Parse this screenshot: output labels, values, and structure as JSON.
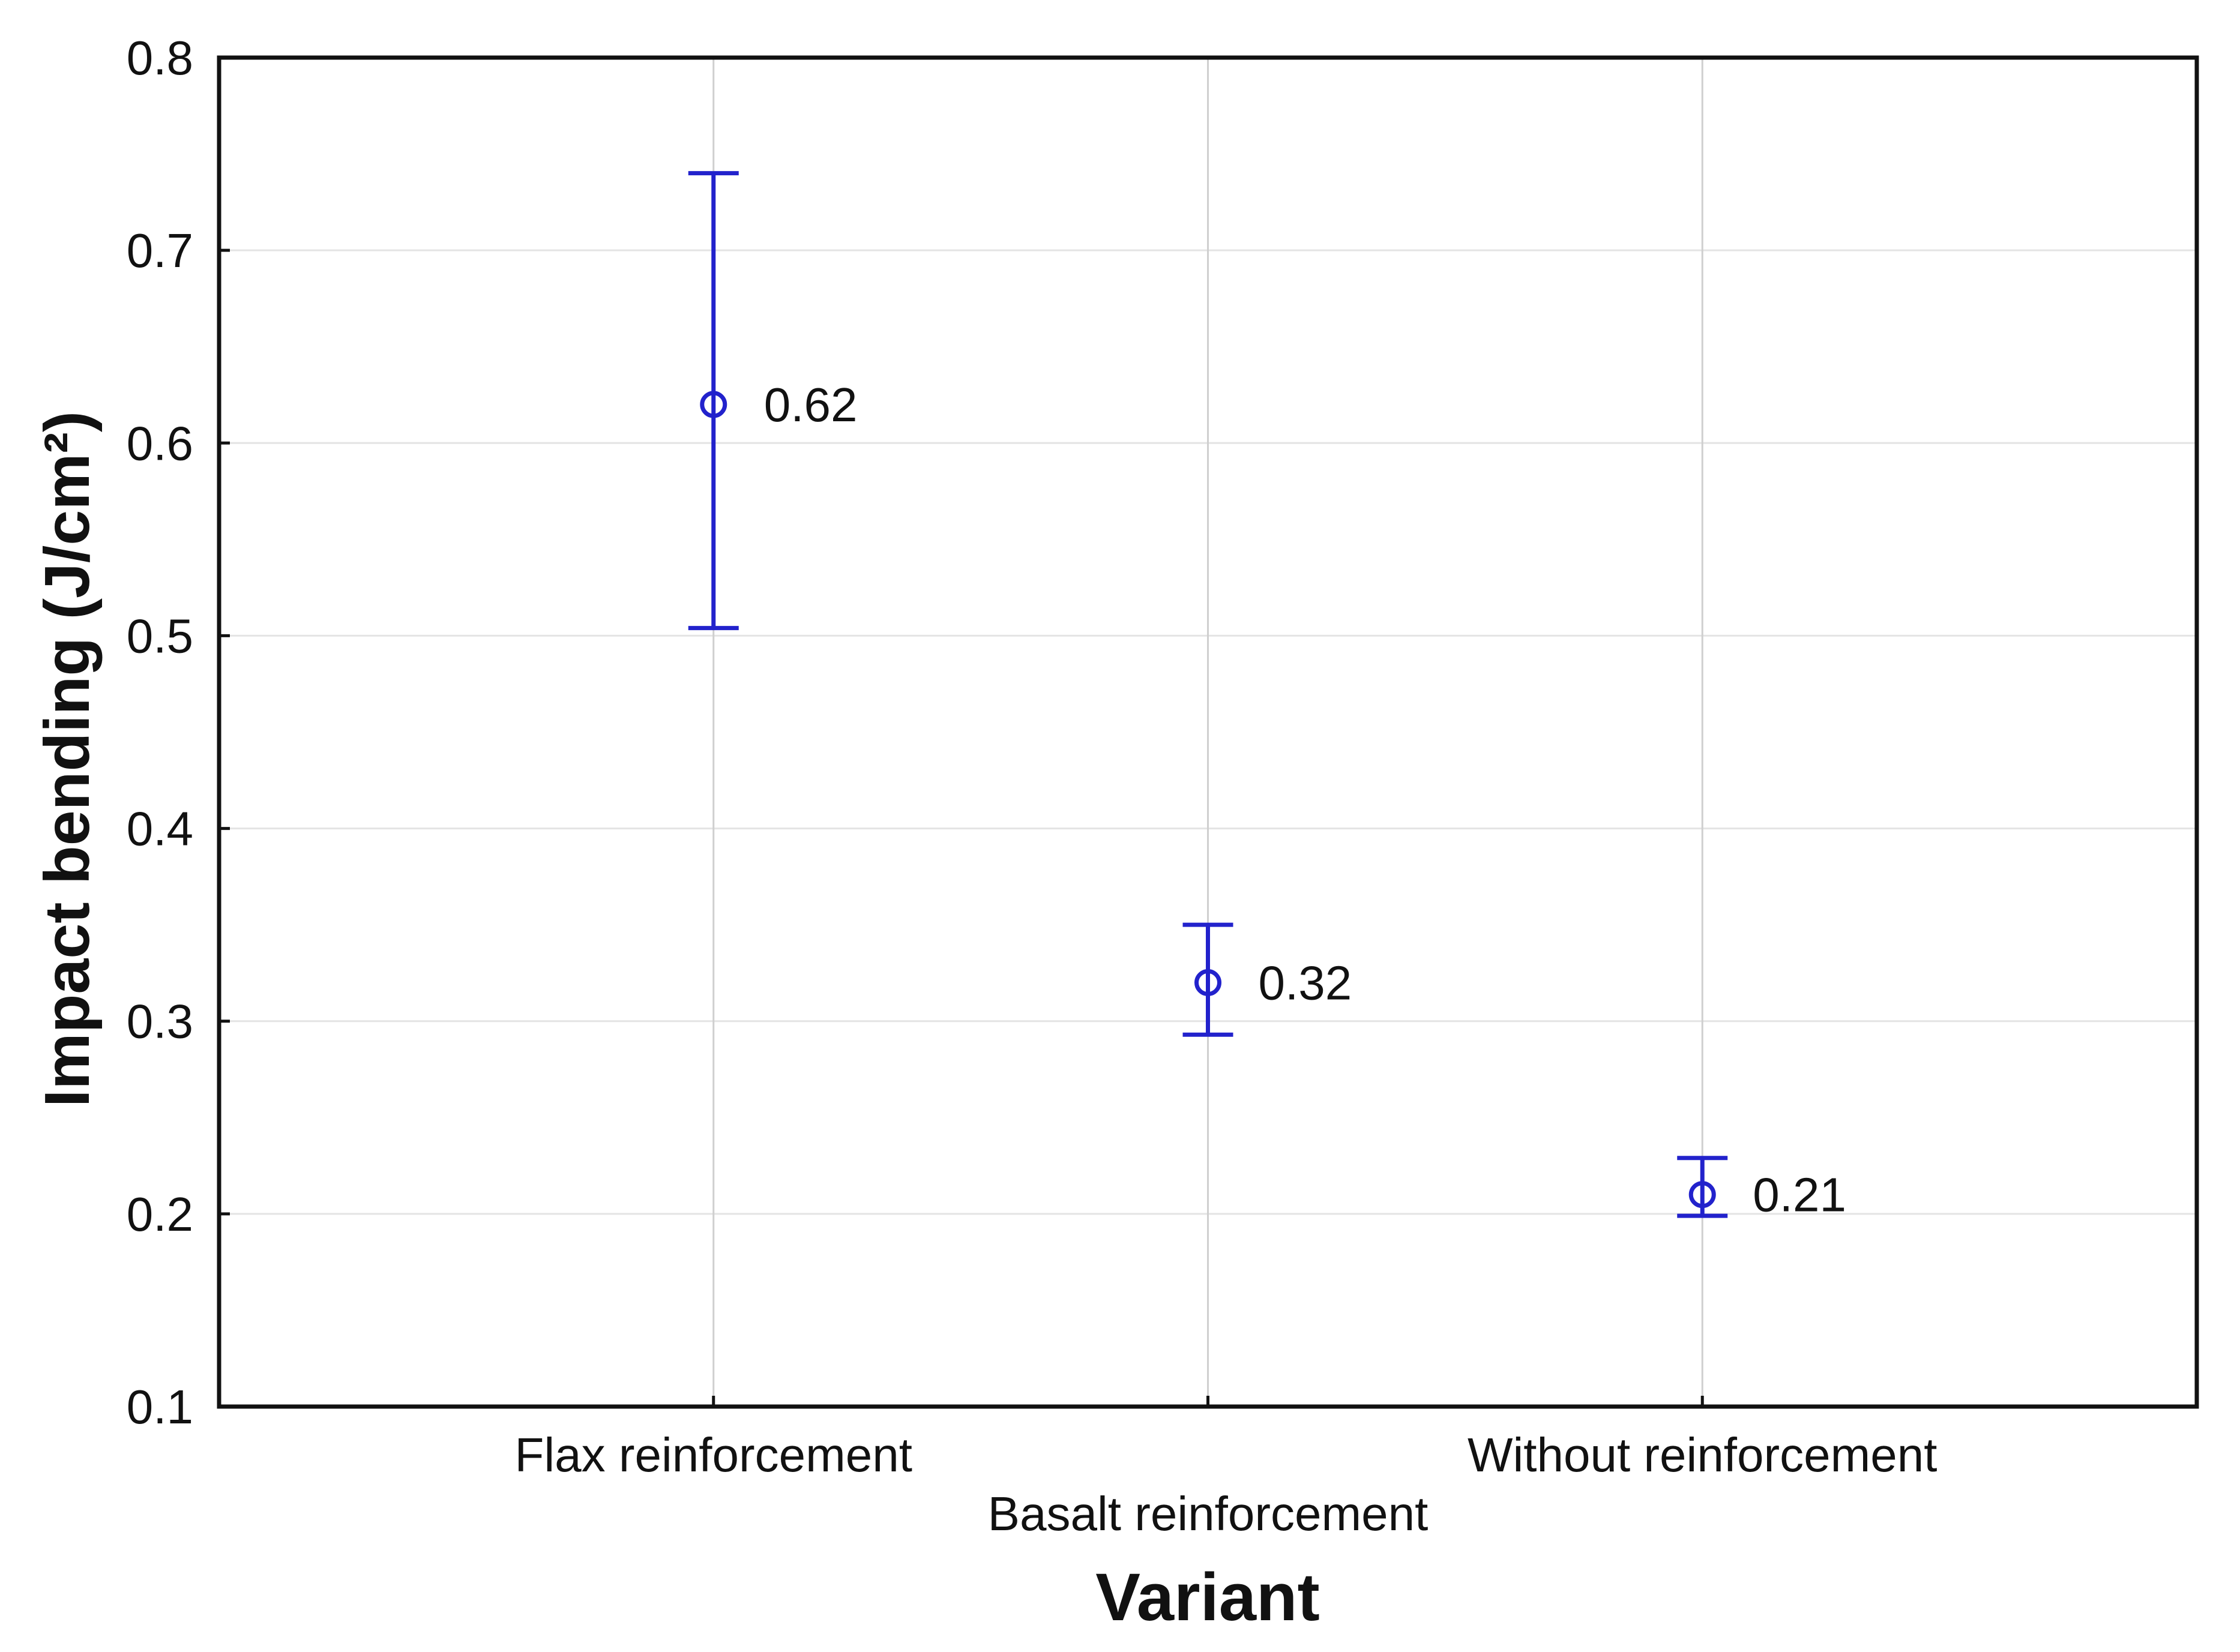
{
  "figure": {
    "background": "#ffffff"
  },
  "chart_data": {
    "type": "scatter",
    "subtype": "means-with-error-bars",
    "title": "",
    "categories": [
      "Flax reinforcement",
      "Basalt reinforcement",
      "Without reinforcement"
    ],
    "values": [
      0.62,
      0.32,
      0.21
    ],
    "point_labels": [
      "0.62",
      "0.32",
      "0.21"
    ],
    "error_bars": {
      "low": [
        0.504,
        0.293,
        0.199
      ],
      "high": [
        0.74,
        0.35,
        0.229
      ]
    },
    "xlabel": "Variant",
    "ylabel": "Impact bending (J/cm²)",
    "ylim": [
      0.1,
      0.8
    ],
    "ytick_step": 0.1,
    "ytick_labels": [
      "0.1",
      "0.2",
      "0.3",
      "0.4",
      "0.5",
      "0.6",
      "0.7",
      "0.8"
    ],
    "grid": "horizontal lines at each y tick, vertical lines at each category",
    "legend": "none",
    "marker": "open-circle",
    "colors": {
      "series": "#2222cc",
      "text": "#111111",
      "frame": "#111111",
      "grid_horizontal": "#e4e4e4",
      "grid_vertical": "#cfcfcf"
    }
  }
}
